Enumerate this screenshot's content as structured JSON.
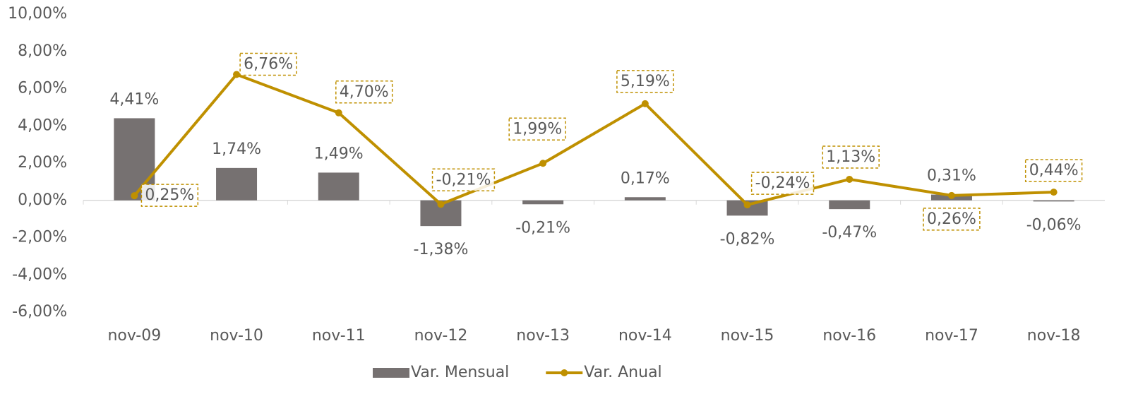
{
  "chart_data": {
    "type": "bar",
    "categories": [
      "nov-09",
      "nov-10",
      "nov-11",
      "nov-12",
      "nov-13",
      "nov-14",
      "nov-15",
      "nov-16",
      "nov-17",
      "nov-18"
    ],
    "series": [
      {
        "name": "Var. Mensual",
        "type": "bar",
        "color": "#767171",
        "values": [
          4.41,
          1.74,
          1.49,
          -1.38,
          -0.21,
          0.17,
          -0.82,
          -0.47,
          0.31,
          -0.06
        ],
        "value_labels": [
          "4,41%",
          "1,74%",
          "1,49%",
          "-1,38%",
          "-0,21%",
          "0,17%",
          "-0,82%",
          "-0,47%",
          "0,31%",
          "-0,06%"
        ]
      },
      {
        "name": "Var. Anual",
        "type": "line",
        "color": "#bf9000",
        "values": [
          0.25,
          6.76,
          4.7,
          -0.21,
          1.99,
          5.19,
          -0.24,
          1.13,
          0.26,
          0.44
        ],
        "value_labels": [
          "0,25%",
          "6,76%",
          "4,70%",
          "-0,21%",
          "1,99%",
          "5,19%",
          "-0,24%",
          "1,13%",
          "0,26%",
          "0,44%"
        ]
      }
    ],
    "ylim": [
      -6,
      10
    ],
    "yticks": [
      {
        "value": -6,
        "label": "-6,00%"
      },
      {
        "value": -4,
        "label": "-4,00%"
      },
      {
        "value": -2,
        "label": "-2,00%"
      },
      {
        "value": 0,
        "label": "0,00%"
      },
      {
        "value": 2,
        "label": "2,00%"
      },
      {
        "value": 4,
        "label": "4,00%"
      },
      {
        "value": 6,
        "label": "6,00%"
      },
      {
        "value": 8,
        "label": "8,00%"
      },
      {
        "value": 10,
        "label": "10,00%"
      }
    ],
    "legend": "bottom"
  }
}
